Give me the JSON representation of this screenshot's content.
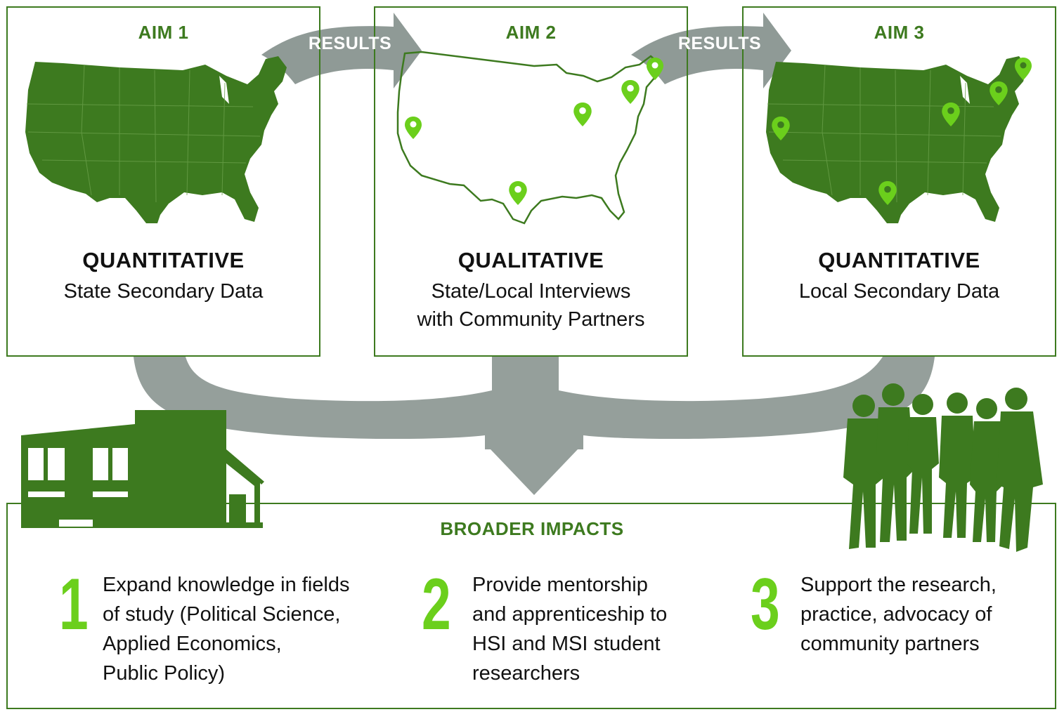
{
  "aims": [
    {
      "title": "AIM 1",
      "method": "QUANTITATIVE",
      "description": "State Secondary Data"
    },
    {
      "title": "AIM 2",
      "method": "QUALITATIVE",
      "description": "State/Local Interviews\nwith Community Partners"
    },
    {
      "title": "AIM 3",
      "method": "QUANTITATIVE",
      "description": "Local Secondary Data"
    }
  ],
  "arrows": {
    "results_1": "RESULTS",
    "results_2": "RESULTS"
  },
  "impacts": {
    "title": "BROADER IMPACTS",
    "items": [
      {
        "number": "1",
        "text": "Expand knowledge in fields\nof study (Political Science,\nApplied Economics,\nPublic Policy)"
      },
      {
        "number": "2",
        "text": "Provide mentorship\nand apprenticeship to\nHSI and MSI student\nresearchers"
      },
      {
        "number": "3",
        "text": "Support the research,\npractice, advocacy of\ncommunity partners"
      }
    ]
  },
  "colors": {
    "dark_green": "#3d7a1f",
    "bright_green": "#6bcf1c",
    "arrow_gray": "#8f9a96"
  },
  "icons": [
    "us-map-icon",
    "us-outline-map-icon",
    "location-pin-icon",
    "building-icon",
    "people-group-icon"
  ]
}
